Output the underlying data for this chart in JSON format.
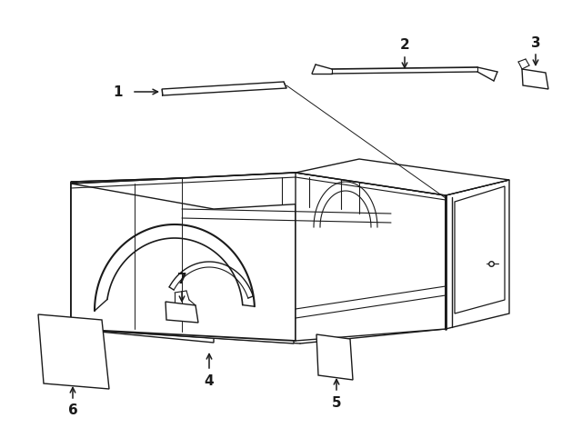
{
  "background_color": "#ffffff",
  "line_color": "#1a1a1a",
  "lw": 1.0,
  "fig_width": 6.4,
  "fig_height": 4.71,
  "dpi": 100
}
